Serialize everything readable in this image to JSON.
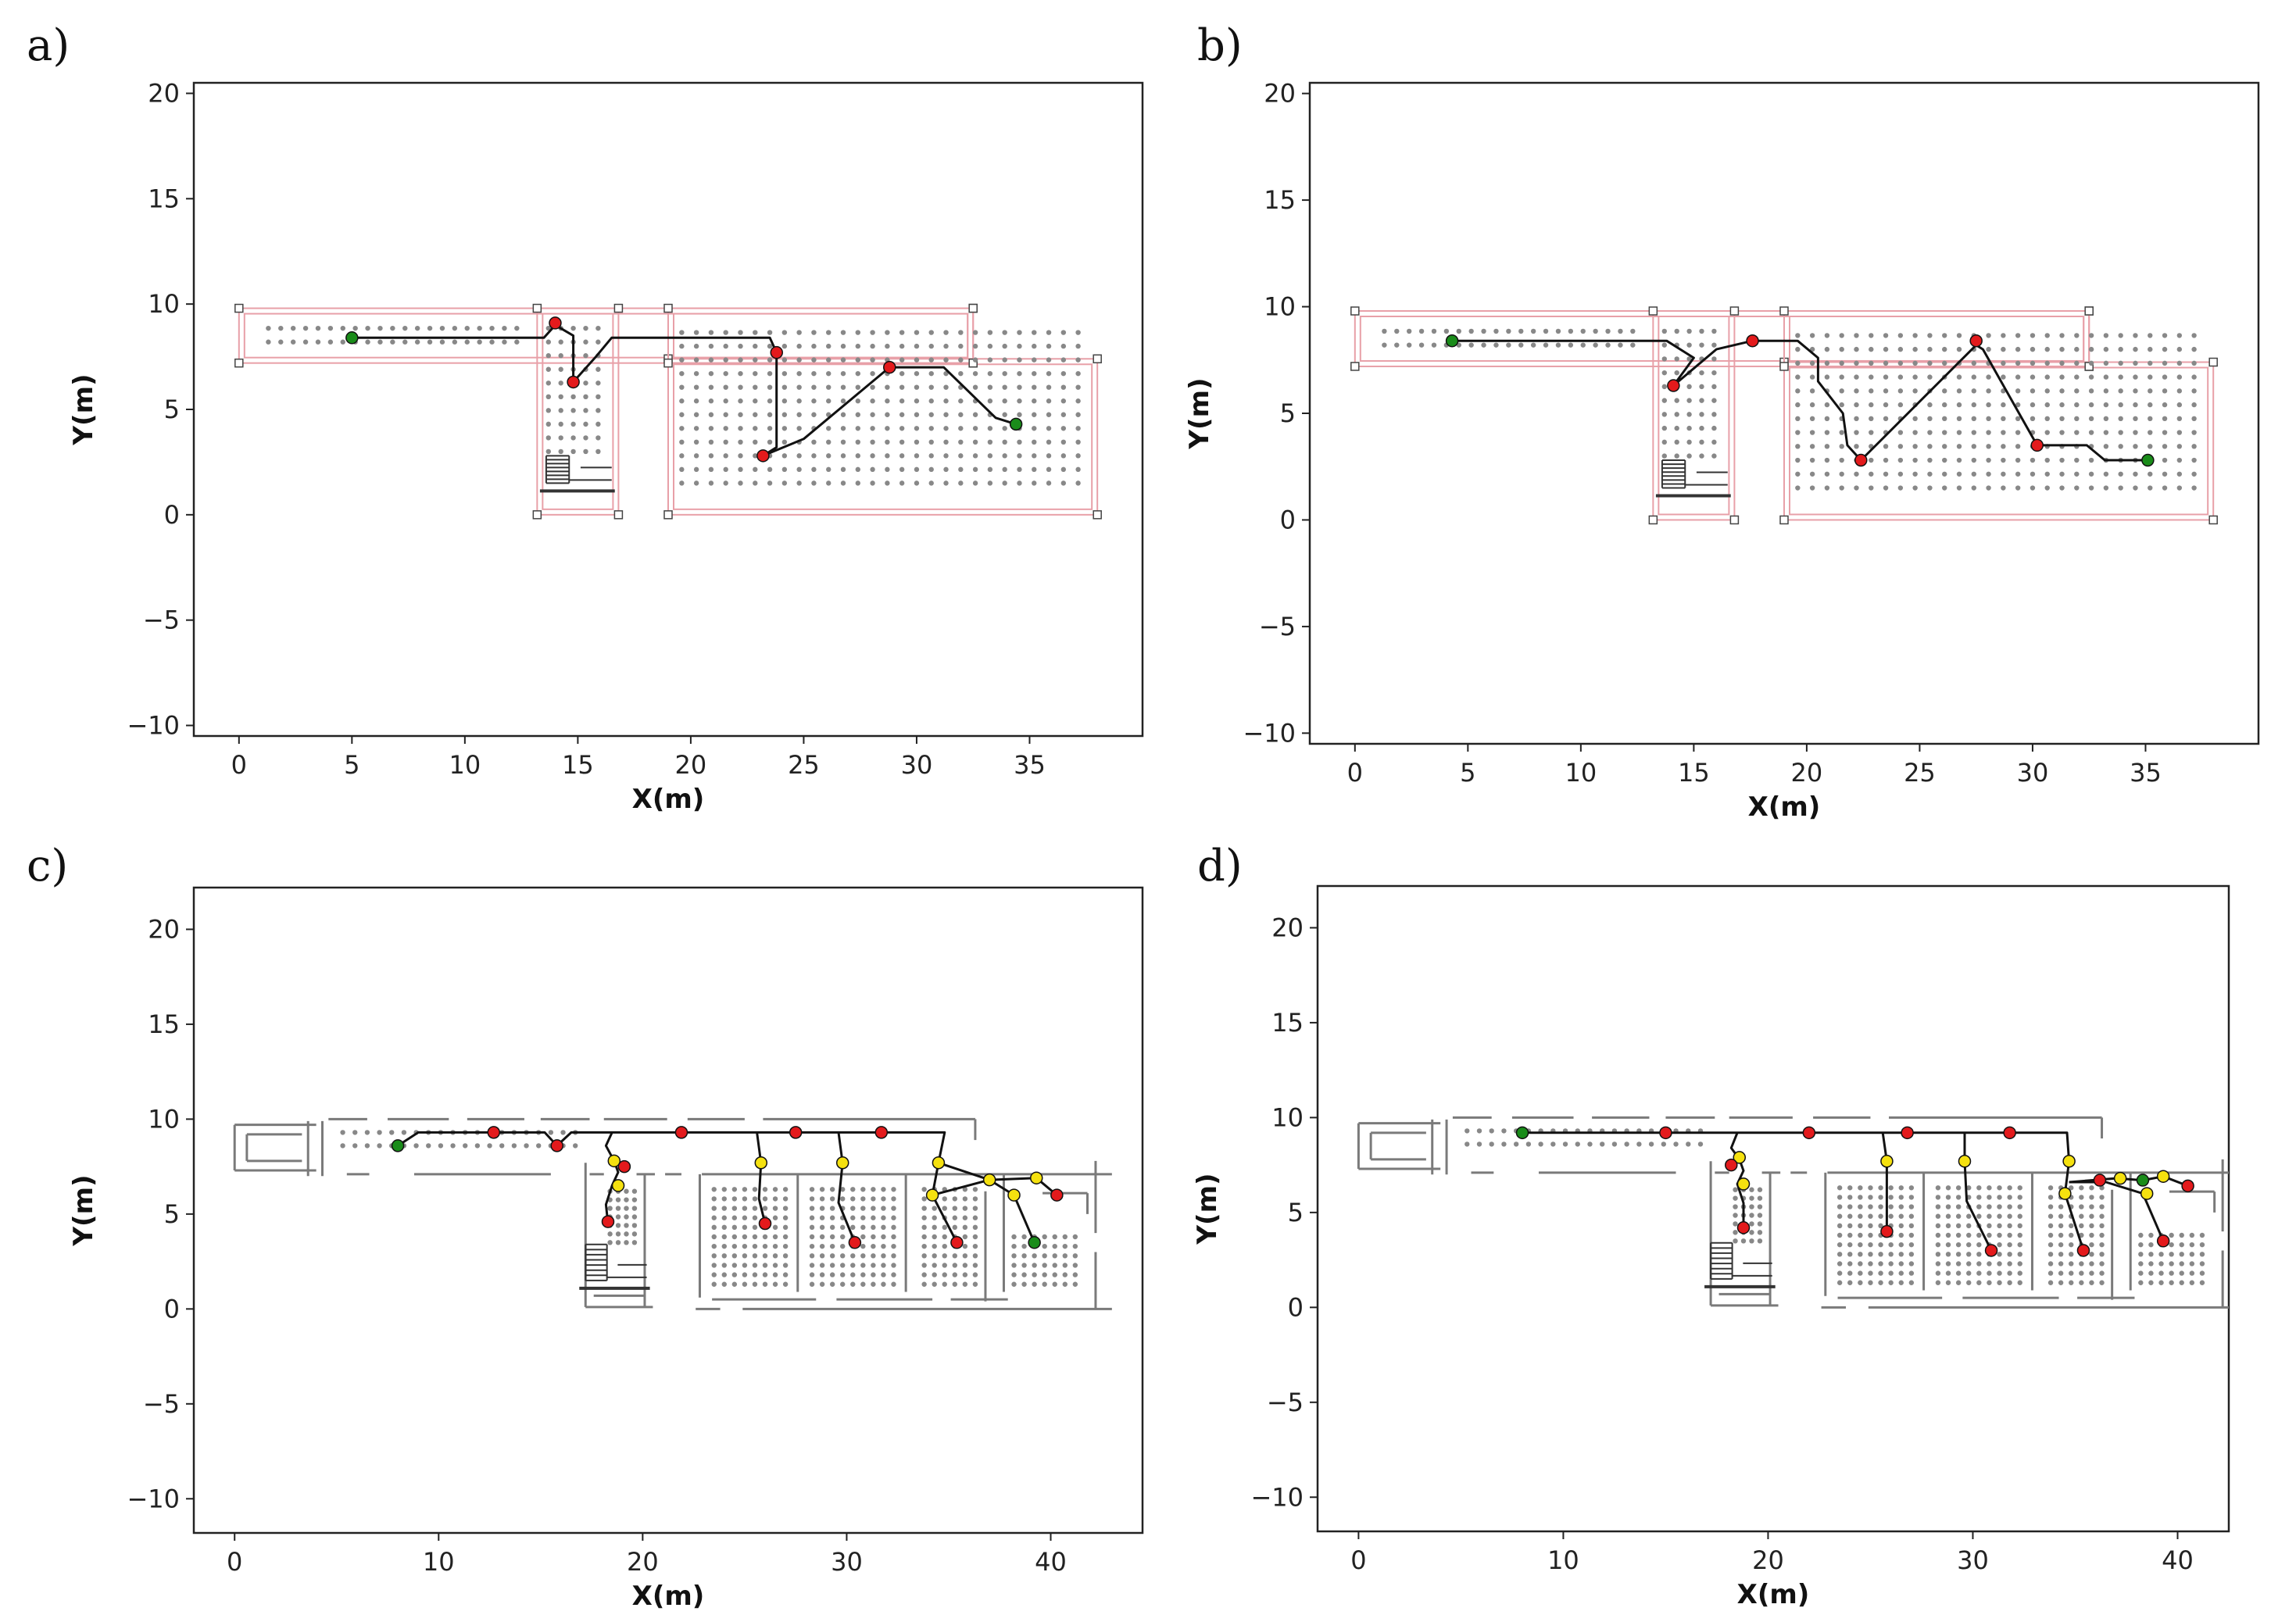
{
  "chart_data": [
    {
      "type": "scatter",
      "panel_label": "a)",
      "title": "",
      "xlabel": "X(m)",
      "ylabel": "Y(m)",
      "xlim": [
        -2,
        40
      ],
      "ylim": [
        -10.5,
        20.5
      ],
      "xticks": [
        0,
        5,
        10,
        15,
        20,
        25,
        30,
        35
      ],
      "yticks": [
        -10,
        -5,
        0,
        5,
        10,
        15,
        20
      ],
      "xtick_labels": [
        "0",
        "5",
        "10",
        "15",
        "20",
        "25",
        "30",
        "35"
      ],
      "ytick_labels": [
        "−10",
        "−5",
        "0",
        "5",
        "10",
        "15",
        "20"
      ],
      "floor_style": "rooms",
      "rooms": [
        {
          "x0": 0,
          "y0": 7.2,
          "x1": 32.5,
          "y1": 9.8
        },
        {
          "x0": 13.2,
          "y0": 0,
          "x1": 16.8,
          "y1": 9.8
        },
        {
          "x0": 19,
          "y0": 0,
          "x1": 38,
          "y1": 7.4
        },
        {
          "x0": 19,
          "y0": 7.2,
          "x1": 32.5,
          "y1": 9.8
        }
      ],
      "grid_regions": [
        {
          "x0": 1.3,
          "x1": 12.8,
          "y0": 8.2,
          "y1": 9.2,
          "dx": 0.55,
          "dy": 0.65
        },
        {
          "x0": 13.7,
          "x1": 15.9,
          "y0": 3.0,
          "y1": 9.2,
          "dx": 0.55,
          "dy": 0.65
        },
        {
          "x0": 19.6,
          "x1": 37.4,
          "y0": 1.5,
          "y1": 9.2,
          "dx": 0.65,
          "dy": 0.65
        }
      ],
      "path": [
        [
          5,
          8.4
        ],
        [
          13.5,
          8.4
        ],
        [
          14,
          9.0
        ],
        [
          14.8,
          8.5
        ],
        [
          14.8,
          6.3
        ],
        [
          15.8,
          7.5
        ],
        [
          16.5,
          8.4
        ],
        [
          23.5,
          8.4
        ],
        [
          23.8,
          7.7
        ],
        [
          23.8,
          3.2
        ],
        [
          23.2,
          2.8
        ],
        [
          25,
          3.6
        ],
        [
          28.8,
          7.0
        ],
        [
          31.2,
          7.0
        ],
        [
          33.5,
          4.6
        ],
        [
          34.4,
          4.3
        ]
      ],
      "points": [
        {
          "x": 5,
          "y": 8.4,
          "color": "#1a8c1a"
        },
        {
          "x": 14,
          "y": 9.1,
          "color": "#e31a1c"
        },
        {
          "x": 14.8,
          "y": 6.3,
          "color": "#e31a1c"
        },
        {
          "x": 23.8,
          "y": 7.7,
          "color": "#e31a1c"
        },
        {
          "x": 23.2,
          "y": 2.8,
          "color": "#e31a1c"
        },
        {
          "x": 28.8,
          "y": 7.0,
          "color": "#e31a1c"
        },
        {
          "x": 34.4,
          "y": 4.3,
          "color": "#1a8c1a"
        }
      ],
      "stairs": {
        "x0": 13.6,
        "y0": 1.5,
        "x1": 16.5,
        "y1": 2.8
      }
    },
    {
      "type": "scatter",
      "panel_label": "b)",
      "title": "",
      "xlabel": "X(m)",
      "ylabel": "Y(m)",
      "xlim": [
        -2,
        40
      ],
      "ylim": [
        -10.5,
        20.5
      ],
      "xticks": [
        0,
        5,
        10,
        15,
        20,
        25,
        30,
        35
      ],
      "yticks": [
        -10,
        -5,
        0,
        5,
        10,
        15,
        20
      ],
      "xtick_labels": [
        "0",
        "5",
        "10",
        "15",
        "20",
        "25",
        "30",
        "35"
      ],
      "ytick_labels": [
        "−10",
        "−5",
        "0",
        "5",
        "10",
        "15",
        "20"
      ],
      "floor_style": "rooms",
      "rooms": [
        {
          "x0": 0,
          "y0": 7.2,
          "x1": 32.5,
          "y1": 9.8
        },
        {
          "x0": 13.2,
          "y0": 0,
          "x1": 16.8,
          "y1": 9.8
        },
        {
          "x0": 19,
          "y0": 0,
          "x1": 38,
          "y1": 7.4
        },
        {
          "x0": 19,
          "y0": 7.2,
          "x1": 32.5,
          "y1": 9.8
        }
      ],
      "grid_regions": [
        {
          "x0": 1.3,
          "x1": 12.8,
          "y0": 8.2,
          "y1": 9.2,
          "dx": 0.55,
          "dy": 0.65
        },
        {
          "x0": 13.7,
          "x1": 15.9,
          "y0": 3.0,
          "y1": 9.2,
          "dx": 0.55,
          "dy": 0.65
        },
        {
          "x0": 19.6,
          "x1": 37.4,
          "y0": 1.5,
          "y1": 9.2,
          "dx": 0.65,
          "dy": 0.65
        }
      ],
      "path": [
        [
          4.3,
          8.4
        ],
        [
          13.8,
          8.4
        ],
        [
          15,
          7.6
        ],
        [
          14.1,
          6.3
        ],
        [
          16.0,
          8.0
        ],
        [
          17.6,
          8.4
        ],
        [
          19.6,
          8.4
        ],
        [
          20.5,
          7.6
        ],
        [
          20.5,
          6.5
        ],
        [
          21.6,
          5.0
        ],
        [
          21.8,
          3.5
        ],
        [
          22.4,
          2.8
        ],
        [
          27.5,
          8.2
        ],
        [
          27.8,
          8.0
        ],
        [
          30.2,
          3.5
        ],
        [
          32.4,
          3.5
        ],
        [
          33.2,
          2.8
        ],
        [
          35.1,
          2.8
        ]
      ],
      "points": [
        {
          "x": 4.3,
          "y": 8.4,
          "color": "#1a8c1a"
        },
        {
          "x": 14.1,
          "y": 6.3,
          "color": "#e31a1c"
        },
        {
          "x": 17.6,
          "y": 8.4,
          "color": "#e31a1c"
        },
        {
          "x": 22.4,
          "y": 2.8,
          "color": "#e31a1c"
        },
        {
          "x": 27.5,
          "y": 8.4,
          "color": "#e31a1c"
        },
        {
          "x": 30.2,
          "y": 3.5,
          "color": "#e31a1c"
        },
        {
          "x": 35.1,
          "y": 2.8,
          "color": "#1a8c1a"
        }
      ],
      "stairs": {
        "x0": 13.6,
        "y0": 1.5,
        "x1": 16.5,
        "y1": 2.8
      }
    },
    {
      "type": "scatter",
      "panel_label": "c)",
      "title": "",
      "xlabel": "X(m)",
      "ylabel": "Y(m)",
      "xlim": [
        -2,
        44.5
      ],
      "ylim": [
        -11.8,
        22.2
      ],
      "xticks": [
        0,
        10,
        20,
        30,
        40
      ],
      "yticks": [
        -10,
        -5,
        0,
        5,
        10,
        15,
        20
      ],
      "xtick_labels": [
        "0",
        "10",
        "20",
        "30",
        "40"
      ],
      "ytick_labels": [
        "−10",
        "−5",
        "0",
        "5",
        "10",
        "15",
        "20"
      ],
      "floor_style": "walls",
      "grid_regions": [
        {
          "x0": 5.3,
          "x1": 16.8,
          "y0": 8.6,
          "y1": 9.4,
          "dx": 0.6,
          "dy": 0.7
        },
        {
          "x0": 18.4,
          "x1": 19.8,
          "y0": 3.5,
          "y1": 6.5,
          "dx": 0.4,
          "dy": 0.45
        },
        {
          "x0": 23.5,
          "x1": 27.0,
          "y0": 1.3,
          "y1": 6.6,
          "dx": 0.5,
          "dy": 0.5
        },
        {
          "x0": 28.3,
          "x1": 32.6,
          "y0": 1.3,
          "y1": 6.6,
          "dx": 0.5,
          "dy": 0.5
        },
        {
          "x0": 33.8,
          "x1": 36.4,
          "y0": 1.3,
          "y1": 6.6,
          "dx": 0.5,
          "dy": 0.5
        },
        {
          "x0": 38.2,
          "x1": 41.2,
          "y0": 1.3,
          "y1": 4.2,
          "dx": 0.5,
          "dy": 0.5
        }
      ],
      "path_segments": [
        [
          [
            8.0,
            8.6
          ],
          [
            9.0,
            9.3
          ],
          [
            15.2,
            9.3
          ],
          [
            15.8,
            8.6
          ],
          [
            16.5,
            9.3
          ],
          [
            34.8,
            9.3
          ],
          [
            34.5,
            7.7
          ],
          [
            34.2,
            6.0
          ],
          [
            35.4,
            3.5
          ]
        ],
        [
          [
            18.5,
            9.3
          ],
          [
            18.2,
            8.6
          ],
          [
            18.6,
            7.8
          ],
          [
            19.1,
            7.5
          ]
        ],
        [
          [
            18.6,
            7.8
          ],
          [
            18.8,
            7.2
          ],
          [
            18.5,
            6.5
          ],
          [
            18.2,
            5.5
          ],
          [
            18.3,
            4.5
          ]
        ],
        [
          [
            25.6,
            9.3
          ],
          [
            25.8,
            7.7
          ],
          [
            25.7,
            5.8
          ],
          [
            26.0,
            4.5
          ]
        ],
        [
          [
            29.6,
            9.3
          ],
          [
            29.8,
            7.7
          ],
          [
            29.6,
            5.6
          ],
          [
            30.4,
            3.5
          ]
        ],
        [
          [
            34.5,
            7.7
          ],
          [
            37.0,
            6.8
          ],
          [
            38.2,
            6.0
          ],
          [
            39.2,
            3.5
          ]
        ],
        [
          [
            34.2,
            6.0
          ],
          [
            37.0,
            6.8
          ],
          [
            39.3,
            6.9
          ],
          [
            40.3,
            6.0
          ]
        ]
      ],
      "points": [
        {
          "x": 8.0,
          "y": 8.6,
          "color": "#1a8c1a"
        },
        {
          "x": 12.7,
          "y": 9.3,
          "color": "#e31a1c"
        },
        {
          "x": 15.8,
          "y": 8.6,
          "color": "#e31a1c"
        },
        {
          "x": 21.9,
          "y": 9.3,
          "color": "#e31a1c"
        },
        {
          "x": 27.5,
          "y": 9.3,
          "color": "#e31a1c"
        },
        {
          "x": 31.7,
          "y": 9.3,
          "color": "#e31a1c"
        },
        {
          "x": 18.6,
          "y": 7.8,
          "color": "#f5e10f"
        },
        {
          "x": 19.1,
          "y": 7.5,
          "color": "#e31a1c"
        },
        {
          "x": 18.8,
          "y": 6.5,
          "color": "#f5e10f"
        },
        {
          "x": 18.3,
          "y": 4.6,
          "color": "#e31a1c"
        },
        {
          "x": 25.8,
          "y": 7.7,
          "color": "#f5e10f"
        },
        {
          "x": 26.0,
          "y": 4.5,
          "color": "#e31a1c"
        },
        {
          "x": 29.8,
          "y": 7.7,
          "color": "#f5e10f"
        },
        {
          "x": 30.4,
          "y": 3.5,
          "color": "#e31a1c"
        },
        {
          "x": 34.5,
          "y": 7.7,
          "color": "#f5e10f"
        },
        {
          "x": 34.2,
          "y": 6.0,
          "color": "#f5e10f"
        },
        {
          "x": 35.4,
          "y": 3.5,
          "color": "#e31a1c"
        },
        {
          "x": 37.0,
          "y": 6.8,
          "color": "#f5e10f"
        },
        {
          "x": 38.2,
          "y": 6.0,
          "color": "#f5e10f"
        },
        {
          "x": 39.3,
          "y": 6.9,
          "color": "#f5e10f"
        },
        {
          "x": 40.3,
          "y": 6.0,
          "color": "#e31a1c"
        },
        {
          "x": 39.2,
          "y": 3.5,
          "color": "#1a8c1a"
        }
      ],
      "stairs": {
        "x0": 17.2,
        "y0": 1.5,
        "x1": 20.2,
        "y1": 3.4
      }
    },
    {
      "type": "scatter",
      "panel_label": "d)",
      "title": "",
      "xlabel": "X(m)",
      "ylabel": "Y(m)",
      "xlim": [
        -2,
        42.5
      ],
      "ylim": [
        -11.8,
        22.2
      ],
      "xticks": [
        0,
        10,
        20,
        30,
        40
      ],
      "yticks": [
        -10,
        -5,
        0,
        5,
        10,
        15,
        20
      ],
      "xtick_labels": [
        "0",
        "10",
        "20",
        "30",
        "40"
      ],
      "ytick_labels": [
        "−10",
        "−5",
        "0",
        "5",
        "10",
        "15",
        "20"
      ],
      "floor_style": "walls",
      "grid_regions": [
        {
          "x0": 5.3,
          "x1": 16.8,
          "y0": 8.6,
          "y1": 9.4,
          "dx": 0.6,
          "dy": 0.7
        },
        {
          "x0": 18.4,
          "x1": 19.8,
          "y0": 3.5,
          "y1": 6.5,
          "dx": 0.4,
          "dy": 0.45
        },
        {
          "x0": 23.5,
          "x1": 27.0,
          "y0": 1.3,
          "y1": 6.6,
          "dx": 0.5,
          "dy": 0.5
        },
        {
          "x0": 28.3,
          "x1": 32.6,
          "y0": 1.3,
          "y1": 6.6,
          "dx": 0.5,
          "dy": 0.5
        },
        {
          "x0": 33.8,
          "x1": 36.4,
          "y0": 1.3,
          "y1": 6.6,
          "dx": 0.5,
          "dy": 0.5
        },
        {
          "x0": 38.2,
          "x1": 41.2,
          "y0": 1.3,
          "y1": 4.2,
          "dx": 0.5,
          "dy": 0.5
        }
      ],
      "path_segments": [
        [
          [
            8.0,
            9.2
          ],
          [
            34.6,
            9.2
          ],
          [
            34.7,
            7.7
          ],
          [
            34.5,
            6.0
          ],
          [
            35.4,
            3.0
          ]
        ],
        [
          [
            18.5,
            9.2
          ],
          [
            18.2,
            8.4
          ],
          [
            18.6,
            7.8
          ],
          [
            18.2,
            7.5
          ]
        ],
        [
          [
            18.6,
            7.8
          ],
          [
            18.8,
            7.2
          ],
          [
            18.5,
            6.5
          ],
          [
            18.8,
            5.5
          ],
          [
            18.8,
            4.2
          ]
        ],
        [
          [
            25.6,
            9.2
          ],
          [
            25.8,
            7.7
          ],
          [
            25.8,
            4.0
          ]
        ],
        [
          [
            29.6,
            9.2
          ],
          [
            29.6,
            7.7
          ],
          [
            29.7,
            5.6
          ],
          [
            30.9,
            3.0
          ]
        ],
        [
          [
            34.7,
            6.6
          ],
          [
            37.0,
            6.8
          ],
          [
            38.3,
            6.7
          ],
          [
            39.3,
            6.9
          ],
          [
            40.5,
            6.4
          ]
        ],
        [
          [
            34.7,
            6.6
          ],
          [
            36.5,
            6.6
          ],
          [
            38.3,
            6.0
          ],
          [
            39.3,
            3.5
          ]
        ]
      ],
      "points": [
        {
          "x": 8.0,
          "y": 9.2,
          "color": "#1a8c1a"
        },
        {
          "x": 15.0,
          "y": 9.2,
          "color": "#e31a1c"
        },
        {
          "x": 22.0,
          "y": 9.2,
          "color": "#e31a1c"
        },
        {
          "x": 26.8,
          "y": 9.2,
          "color": "#e31a1c"
        },
        {
          "x": 31.8,
          "y": 9.2,
          "color": "#e31a1c"
        },
        {
          "x": 18.6,
          "y": 7.9,
          "color": "#f5e10f"
        },
        {
          "x": 18.2,
          "y": 7.5,
          "color": "#e31a1c"
        },
        {
          "x": 18.8,
          "y": 6.5,
          "color": "#f5e10f"
        },
        {
          "x": 18.8,
          "y": 4.2,
          "color": "#e31a1c"
        },
        {
          "x": 25.8,
          "y": 7.7,
          "color": "#f5e10f"
        },
        {
          "x": 25.8,
          "y": 4.0,
          "color": "#e31a1c"
        },
        {
          "x": 29.6,
          "y": 7.7,
          "color": "#f5e10f"
        },
        {
          "x": 30.9,
          "y": 3.0,
          "color": "#e31a1c"
        },
        {
          "x": 34.7,
          "y": 7.7,
          "color": "#f5e10f"
        },
        {
          "x": 34.5,
          "y": 6.0,
          "color": "#f5e10f"
        },
        {
          "x": 35.4,
          "y": 3.0,
          "color": "#e31a1c"
        },
        {
          "x": 36.2,
          "y": 6.7,
          "color": "#e31a1c"
        },
        {
          "x": 37.2,
          "y": 6.8,
          "color": "#f5e10f"
        },
        {
          "x": 38.3,
          "y": 6.7,
          "color": "#1a8c1a"
        },
        {
          "x": 38.5,
          "y": 6.0,
          "color": "#f5e10f"
        },
        {
          "x": 39.3,
          "y": 6.9,
          "color": "#f5e10f"
        },
        {
          "x": 40.5,
          "y": 6.4,
          "color": "#e31a1c"
        },
        {
          "x": 39.3,
          "y": 3.5,
          "color": "#e31a1c"
        }
      ],
      "stairs": {
        "x0": 17.2,
        "y0": 1.5,
        "x1": 20.2,
        "y1": 3.4
      }
    }
  ]
}
